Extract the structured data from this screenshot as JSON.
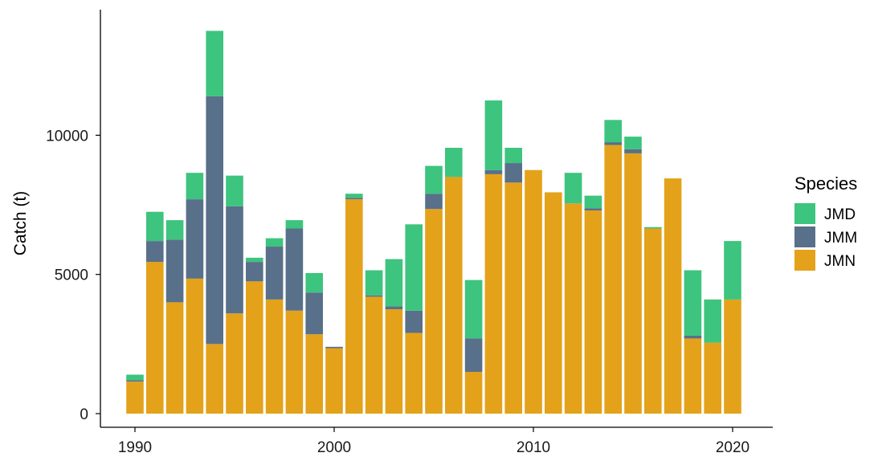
{
  "chart_data": {
    "type": "bar",
    "stacked": true,
    "title": "",
    "xlabel": "",
    "ylabel": "Catch (t)",
    "xlim": [
      1989,
      2021
    ],
    "ylim": [
      0,
      14200
    ],
    "x_ticks": [
      1990,
      2000,
      2010,
      2020
    ],
    "y_ticks": [
      0,
      5000,
      10000
    ],
    "grid": false,
    "legend": {
      "title": "Species",
      "placement": "right"
    },
    "years": [
      1990,
      1991,
      1992,
      1993,
      1994,
      1995,
      1996,
      1997,
      1998,
      1999,
      2000,
      2001,
      2002,
      2003,
      2004,
      2005,
      2006,
      2007,
      2008,
      2009,
      2010,
      2011,
      2012,
      2013,
      2014,
      2015,
      2016,
      2017,
      2018,
      2019,
      2020
    ],
    "series": [
      {
        "name": "JMN",
        "color": "#E3A21A",
        "values": [
          1150,
          5450,
          4000,
          4850,
          2500,
          3600,
          4750,
          4100,
          3700,
          2850,
          2350,
          7700,
          4200,
          3750,
          2900,
          7350,
          8500,
          1500,
          8600,
          8300,
          8750,
          7950,
          7550,
          7300,
          9650,
          9350,
          6650,
          8450,
          2700,
          2550,
          4100
        ]
      },
      {
        "name": "JMM",
        "color": "#58708A",
        "values": [
          50,
          750,
          2250,
          2850,
          8900,
          3850,
          700,
          1900,
          2950,
          1500,
          50,
          50,
          50,
          100,
          800,
          550,
          0,
          1200,
          150,
          700,
          0,
          0,
          0,
          80,
          100,
          150,
          0,
          0,
          100,
          0,
          0
        ]
      },
      {
        "name": "JMD",
        "color": "#3DC47E",
        "values": [
          200,
          1050,
          700,
          950,
          2350,
          1100,
          150,
          300,
          300,
          700,
          0,
          150,
          900,
          1700,
          3100,
          1000,
          1050,
          2100,
          2500,
          550,
          0,
          0,
          1100,
          450,
          800,
          450,
          50,
          0,
          2350,
          1550,
          2100
        ]
      }
    ]
  }
}
